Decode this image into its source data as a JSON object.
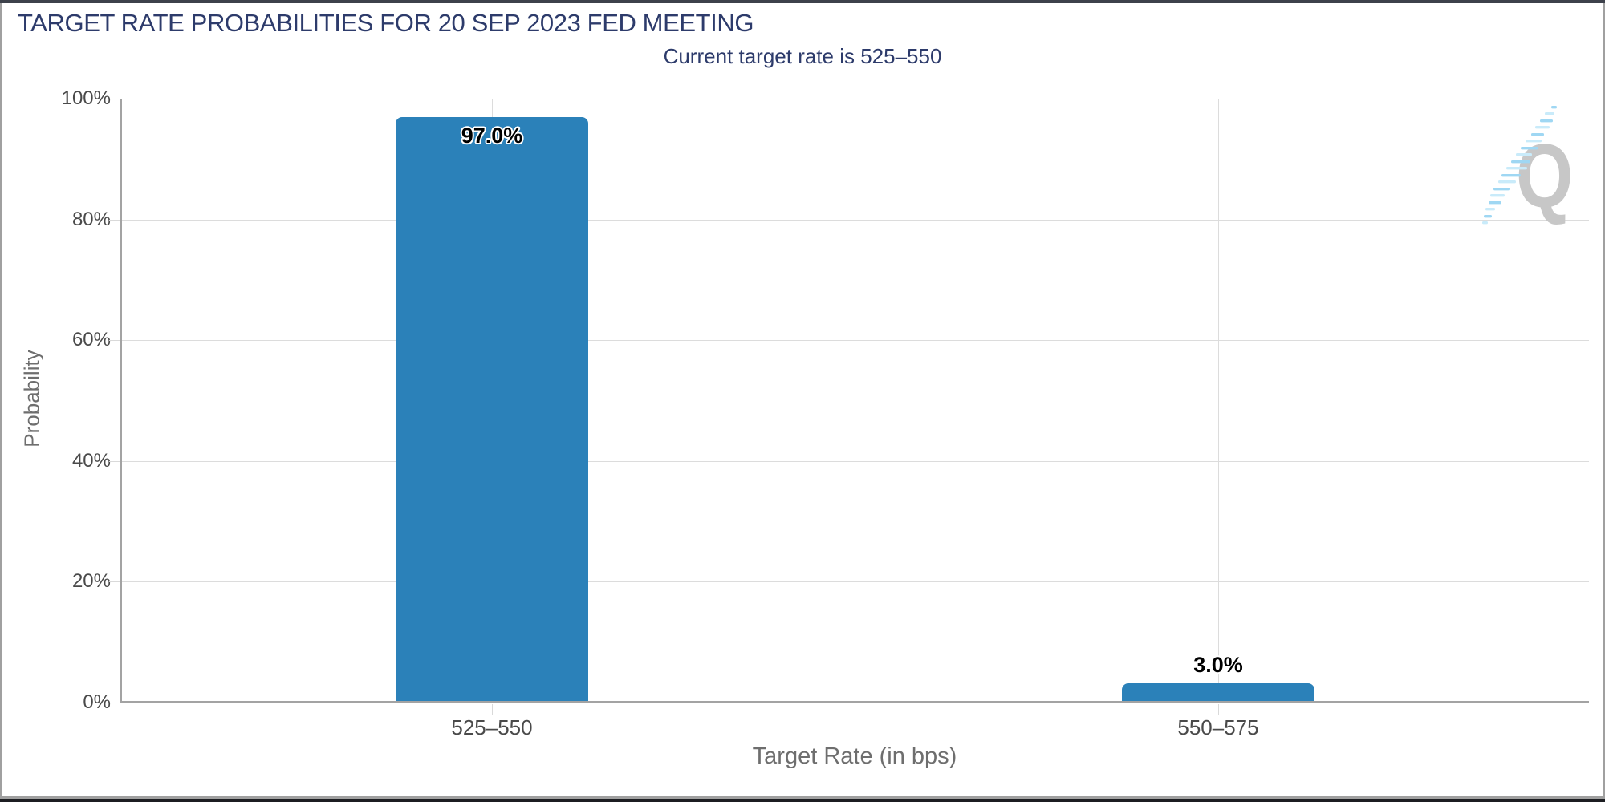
{
  "header": {
    "title": "TARGET RATE PROBABILITIES FOR 20 SEP 2023 FED MEETING",
    "subtitle": "Current target rate is 525–550"
  },
  "chart_data": {
    "type": "bar",
    "title": "TARGET RATE PROBABILITIES FOR 20 SEP 2023 FED MEETING",
    "subtitle": "Current target rate is 525–550",
    "xlabel": "Target Rate (in bps)",
    "ylabel": "Probability",
    "categories": [
      "525–550",
      "550–575"
    ],
    "values": [
      97.0,
      3.0
    ],
    "value_labels": [
      "97.0%",
      "3.0%"
    ],
    "ylim": [
      0,
      100
    ],
    "ytick_labels": [
      "0%",
      "20%",
      "40%",
      "60%",
      "80%",
      "100%"
    ],
    "grid": true,
    "legend": "none",
    "bar_color": "#2b81b9",
    "title_color": "#2d3b6b"
  },
  "watermark": {
    "letter": "Q"
  }
}
